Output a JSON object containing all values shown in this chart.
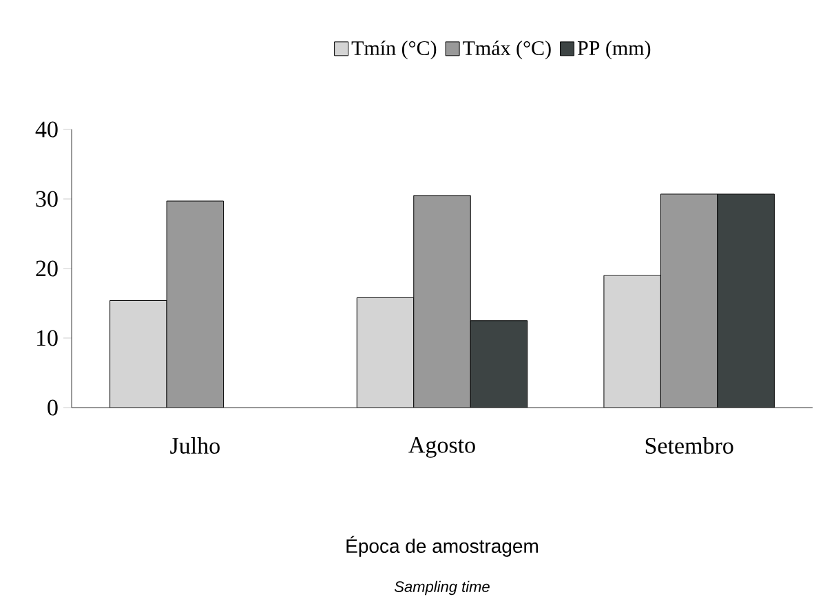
{
  "chart_data": {
    "type": "bar",
    "xlabel": "Época de amostragem",
    "annotations": [
      "Sampling time"
    ],
    "categories": [
      "Julho",
      "Agosto",
      "Setembro"
    ],
    "series": [
      {
        "name": "Tmín (°C)",
        "color": "#d4d4d4",
        "values": [
          15.4,
          15.8,
          19.0
        ]
      },
      {
        "name": "Tmáx (°C)",
        "color": "#999999",
        "values": [
          29.7,
          30.5,
          30.7
        ]
      },
      {
        "name": "PP (mm)",
        "color": "#3d4444",
        "values": [
          null,
          12.5,
          30.7
        ]
      }
    ],
    "ylim": [
      0,
      40
    ],
    "yticks": [
      0,
      10,
      20,
      30,
      40
    ],
    "grid": false,
    "legend": "top"
  }
}
